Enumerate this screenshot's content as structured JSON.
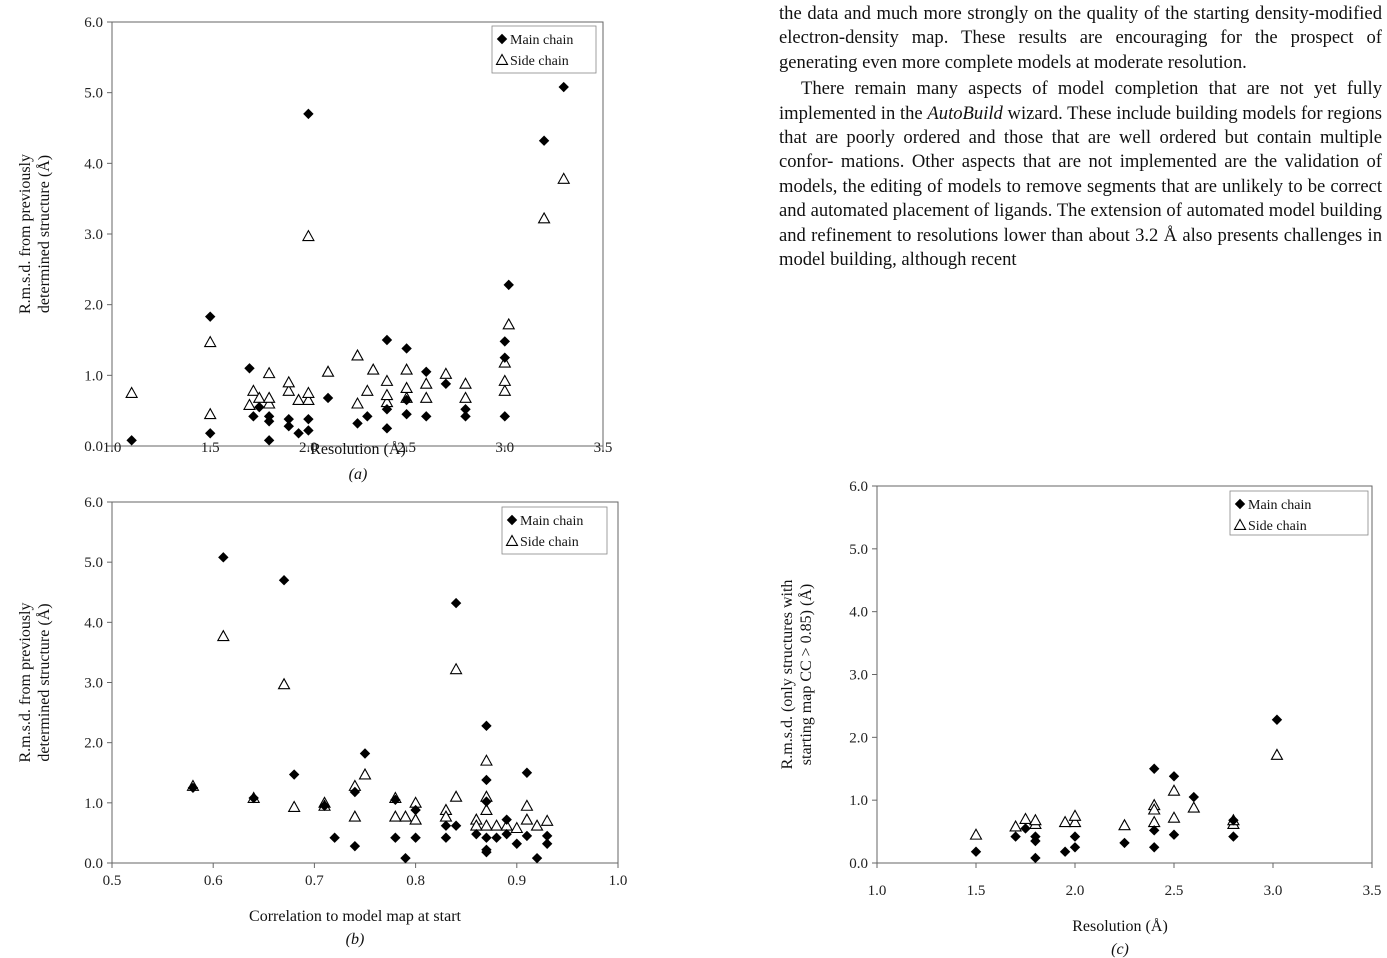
{
  "article": {
    "para1_lines": [
      "the data and much more strongly on the quality of the starting",
      "density-modified electron-density map. These results are",
      "encouraging for the prospect of generating even more",
      "complete models at moderate resolution."
    ],
    "para2_lines": [
      "There remain many aspects of model completion that are",
      "not yet fully implemented in the AutoBuild wizard. These",
      "include building models for regions that are poorly ordered",
      "and those that are well ordered but contain multiple confor-",
      "mations. Other aspects that are not implemented are the",
      "validation of models, the editing of models to remove",
      "segments that are unlikely to be correct and automated",
      "placement of ligands. The extension of automated model",
      "building and refinement to resolutions lower than about 3.2 Å",
      "also presents challenges in model building, although recent"
    ]
  },
  "chart_data": [
    {
      "type": "scatter",
      "caption": "(a)",
      "xlabel": "Resolution (Å)",
      "ylabel": [
        "R.m.s.d. from previously",
        "determined structure (Å)"
      ],
      "xlim": [
        1.0,
        3.5
      ],
      "ylim": [
        0.0,
        6.0
      ],
      "xticks": [
        "1.0",
        "1.5",
        "2.0",
        "2.5",
        "3.0",
        "3.5"
      ],
      "yticks": [
        "0.0",
        "1.0",
        "2.0",
        "3.0",
        "4.0",
        "5.0",
        "6.0"
      ],
      "legend": "top-right",
      "series": [
        {
          "name": "Main chain",
          "marker": "diamond",
          "x": [
            1.1,
            1.5,
            1.5,
            1.7,
            1.72,
            1.75,
            1.8,
            1.8,
            1.8,
            1.9,
            1.9,
            1.95,
            2.0,
            2.0,
            2.0,
            2.1,
            2.25,
            2.3,
            2.4,
            2.4,
            2.4,
            2.5,
            2.5,
            2.5,
            2.6,
            2.6,
            2.7,
            2.8,
            2.8,
            3.0,
            3.0,
            3.0,
            3.02,
            3.2,
            3.3
          ],
          "y": [
            0.08,
            0.18,
            1.83,
            1.1,
            0.42,
            0.55,
            0.08,
            0.35,
            0.42,
            0.28,
            0.38,
            0.18,
            0.22,
            0.38,
            4.7,
            0.68,
            0.32,
            0.42,
            0.25,
            0.52,
            1.5,
            0.45,
            0.65,
            1.38,
            0.42,
            1.05,
            0.88,
            0.42,
            0.52,
            0.42,
            1.48,
            1.25,
            2.28,
            4.32,
            5.08
          ]
        },
        {
          "name": "Side chain",
          "marker": "triangle",
          "x": [
            1.1,
            1.5,
            1.5,
            1.7,
            1.72,
            1.75,
            1.8,
            1.8,
            1.8,
            1.9,
            1.9,
            1.95,
            2.0,
            2.0,
            2.0,
            2.1,
            2.25,
            2.25,
            2.3,
            2.33,
            2.4,
            2.4,
            2.4,
            2.5,
            2.5,
            2.5,
            2.6,
            2.6,
            2.7,
            2.8,
            2.8,
            3.0,
            3.0,
            3.0,
            3.02,
            3.2,
            3.3
          ],
          "y": [
            0.75,
            0.45,
            1.47,
            0.58,
            0.78,
            0.68,
            0.6,
            0.68,
            1.03,
            0.78,
            0.9,
            0.65,
            0.65,
            0.75,
            2.97,
            1.05,
            0.6,
            1.28,
            0.78,
            1.08,
            0.62,
            0.92,
            0.72,
            0.68,
            1.08,
            0.82,
            0.68,
            0.88,
            1.02,
            0.68,
            0.88,
            0.78,
            0.92,
            1.18,
            1.72,
            3.22,
            3.78
          ]
        }
      ]
    },
    {
      "type": "scatter",
      "caption": "(b)",
      "xlabel": "Correlation to model map at start",
      "ylabel": [
        "R.m.s.d. from previously",
        "determined structure (Å)"
      ],
      "xlim": [
        0.5,
        1.0
      ],
      "ylim": [
        0.0,
        6.0
      ],
      "xticks": [
        "0.5",
        "0.6",
        "0.7",
        "0.8",
        "0.9",
        "1.0"
      ],
      "yticks": [
        "0.0",
        "1.0",
        "2.0",
        "3.0",
        "4.0",
        "5.0",
        "6.0"
      ],
      "legend": "top-right",
      "series": [
        {
          "name": "Main chain",
          "marker": "diamond",
          "x": [
            0.58,
            0.61,
            0.64,
            0.67,
            0.68,
            0.71,
            0.72,
            0.74,
            0.74,
            0.75,
            0.78,
            0.78,
            0.79,
            0.8,
            0.8,
            0.83,
            0.83,
            0.84,
            0.84,
            0.86,
            0.87,
            0.87,
            0.87,
            0.87,
            0.87,
            0.87,
            0.88,
            0.89,
            0.89,
            0.9,
            0.91,
            0.91,
            0.92,
            0.93,
            0.93
          ],
          "y": [
            1.25,
            5.08,
            1.08,
            4.7,
            1.47,
            0.95,
            0.42,
            1.18,
            0.28,
            1.82,
            1.05,
            0.42,
            0.08,
            0.42,
            0.88,
            0.42,
            0.62,
            4.32,
            0.62,
            0.48,
            0.22,
            0.18,
            0.42,
            1.02,
            1.38,
            2.28,
            0.42,
            0.48,
            0.72,
            0.32,
            0.45,
            1.5,
            0.08,
            0.32,
            0.45
          ]
        },
        {
          "name": "Side chain",
          "marker": "triangle",
          "x": [
            0.58,
            0.61,
            0.64,
            0.67,
            0.68,
            0.71,
            0.71,
            0.74,
            0.74,
            0.75,
            0.78,
            0.78,
            0.79,
            0.8,
            0.8,
            0.83,
            0.83,
            0.84,
            0.84,
            0.86,
            0.86,
            0.87,
            0.87,
            0.87,
            0.87,
            0.88,
            0.89,
            0.9,
            0.91,
            0.91,
            0.92,
            0.93
          ],
          "y": [
            1.28,
            3.77,
            1.08,
            2.97,
            0.93,
            1.0,
            0.95,
            0.77,
            1.28,
            1.47,
            1.08,
            0.77,
            0.77,
            1.0,
            0.72,
            0.88,
            0.77,
            1.1,
            3.22,
            0.72,
            0.62,
            0.62,
            1.1,
            1.7,
            0.88,
            0.62,
            0.62,
            0.58,
            0.95,
            0.72,
            0.62,
            0.7
          ]
        }
      ]
    },
    {
      "type": "scatter",
      "caption": "(c)",
      "xlabel": "Resolution (Å)",
      "ylabel": [
        "R.m.s.d. (only structures with",
        "starting map CC > 0.85) (Å)"
      ],
      "xlim": [
        1.0,
        3.5
      ],
      "ylim": [
        0.0,
        6.0
      ],
      "xticks": [
        "1.0",
        "1.5",
        "2.0",
        "2.5",
        "3.0",
        "3.5"
      ],
      "yticks": [
        "0.0",
        "1.0",
        "2.0",
        "3.0",
        "4.0",
        "5.0",
        "6.0"
      ],
      "legend": "top-right",
      "series": [
        {
          "name": "Main chain",
          "marker": "diamond",
          "x": [
            1.5,
            1.7,
            1.75,
            1.8,
            1.8,
            1.8,
            1.95,
            2.0,
            2.0,
            2.25,
            2.4,
            2.4,
            2.4,
            2.5,
            2.5,
            2.6,
            2.8,
            2.8,
            3.02
          ],
          "y": [
            0.18,
            0.42,
            0.55,
            0.08,
            0.35,
            0.42,
            0.18,
            0.25,
            0.42,
            0.32,
            0.25,
            0.52,
            1.5,
            0.45,
            1.38,
            1.05,
            0.42,
            0.68,
            2.28
          ]
        },
        {
          "name": "Side chain",
          "marker": "triangle",
          "x": [
            1.5,
            1.7,
            1.75,
            1.8,
            1.8,
            1.95,
            2.0,
            2.0,
            2.25,
            2.4,
            2.4,
            2.4,
            2.5,
            2.5,
            2.6,
            2.8,
            2.8,
            3.02
          ],
          "y": [
            0.45,
            0.58,
            0.7,
            0.62,
            0.68,
            0.65,
            0.65,
            0.75,
            0.6,
            0.65,
            0.92,
            0.85,
            0.72,
            1.15,
            0.88,
            0.62,
            0.68,
            1.72
          ]
        }
      ]
    }
  ]
}
